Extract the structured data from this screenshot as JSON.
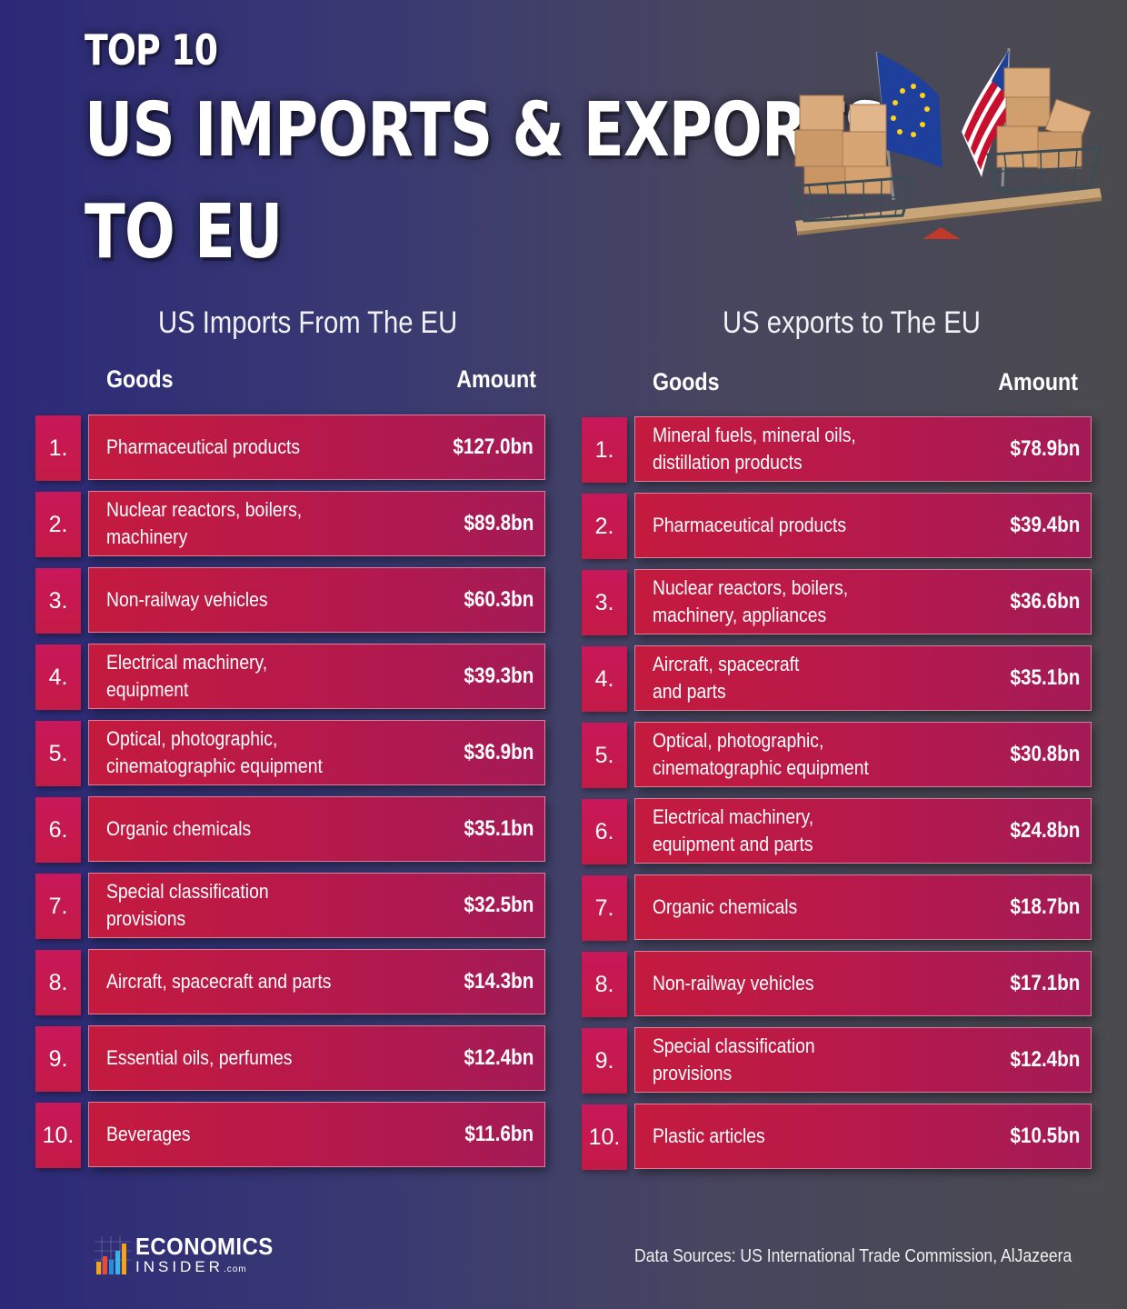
{
  "header": {
    "title_top": "TOP 10",
    "title_line1": "US IMPORTS & EXPORTS",
    "title_line2": "TO EU"
  },
  "imports": {
    "section_title": "US Imports From The EU",
    "goods_header": "Goods",
    "amount_header": "Amount",
    "rows": [
      {
        "rank": "1.",
        "goods": "Pharmaceutical products",
        "amount": "$127.0bn"
      },
      {
        "rank": "2.",
        "goods": "Nuclear reactors, boilers,\nmachinery",
        "amount": "$89.8bn"
      },
      {
        "rank": "3.",
        "goods": "Non-railway vehicles",
        "amount": "$60.3bn"
      },
      {
        "rank": "4.",
        "goods": "Electrical machinery,\nequipment",
        "amount": "$39.3bn"
      },
      {
        "rank": "5.",
        "goods": "Optical, photographic,\ncinematographic equipment",
        "amount": "$36.9bn"
      },
      {
        "rank": "6.",
        "goods": "Organic chemicals",
        "amount": "$35.1bn"
      },
      {
        "rank": "7.",
        "goods": "Special classification\nprovisions",
        "amount": "$32.5bn"
      },
      {
        "rank": "8.",
        "goods": "Aircraft, spacecraft and parts",
        "amount": "$14.3bn"
      },
      {
        "rank": "9.",
        "goods": "Essential oils, perfumes",
        "amount": "$12.4bn"
      },
      {
        "rank": "10.",
        "goods": "Beverages",
        "amount": "$11.6bn"
      }
    ]
  },
  "exports": {
    "section_title": "US exports to The EU",
    "goods_header": "Goods",
    "amount_header": "Amount",
    "rows": [
      {
        "rank": "1.",
        "goods": "Mineral fuels, mineral oils,\ndistillation products",
        "amount": "$78.9bn"
      },
      {
        "rank": "2.",
        "goods": "Pharmaceutical products",
        "amount": "$39.4bn"
      },
      {
        "rank": "3.",
        "goods": "Nuclear reactors, boilers,\nmachinery, appliances",
        "amount": "$36.6bn"
      },
      {
        "rank": "4.",
        "goods": "Aircraft, spacecraft\nand parts",
        "amount": "$35.1bn"
      },
      {
        "rank": "5.",
        "goods": "Optical, photographic,\ncinematographic equipment",
        "amount": "$30.8bn"
      },
      {
        "rank": "6.",
        "goods": "Electrical machinery,\nequipment and parts",
        "amount": "$24.8bn"
      },
      {
        "rank": "7.",
        "goods": "Organic chemicals",
        "amount": "$18.7bn"
      },
      {
        "rank": "8.",
        "goods": "Non-railway vehicles",
        "amount": "$17.1bn"
      },
      {
        "rank": "9.",
        "goods": "Special classification\nprovisions",
        "amount": "$12.4bn"
      },
      {
        "rank": "10.",
        "goods": "Plastic articles",
        "amount": "$10.5bn"
      }
    ]
  },
  "footer": {
    "logo_line1": "ECONOMICS",
    "logo_line2": "INSIDER",
    "logo_suffix": ".com",
    "source": "Data Sources: US International Trade Commission, AlJazeera"
  },
  "colors": {
    "rank_box": "#c8185a",
    "row_start": "#c41a3e",
    "row_end": "#a41a56",
    "background_left": "#2c2a78",
    "background_right": "#4a4a4e"
  },
  "icons": {
    "illustration": "trade-balance-scale-icon",
    "logo": "bar-chart-logo-icon"
  }
}
